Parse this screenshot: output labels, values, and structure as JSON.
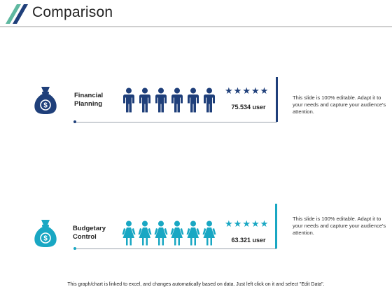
{
  "title": "Comparison",
  "colors": {
    "navy": "#1f3f7a",
    "teal": "#19a7c3",
    "title_deco_green": "#5fb8a0",
    "title_deco_navy": "#1f3f7a",
    "rule_gray": "#cfcfcf"
  },
  "rows": [
    {
      "label_line1": "Financial",
      "label_line2": "Planning",
      "icon": "money-bag-icon",
      "person_icon": "male-person-icon",
      "person_count": 6,
      "star_count": 5,
      "value": "75.534 user",
      "description": "This slide is 100% editable. Adapt it to your needs and capture your audience's attention.",
      "color": "#1f3f7a"
    },
    {
      "label_line1": "Budgetary",
      "label_line2": "Control",
      "icon": "money-bag-icon",
      "person_icon": "female-person-icon",
      "person_count": 6,
      "star_count": 5,
      "value": "63.321 user",
      "description": "This slide is 100% editable. Adapt it to your needs and capture your audience's attention.",
      "color": "#19a7c3"
    }
  ],
  "footer": "This graph/chart is linked to excel, and changes automatically based on data. Just left click on it and select \"Edit Data\"."
}
